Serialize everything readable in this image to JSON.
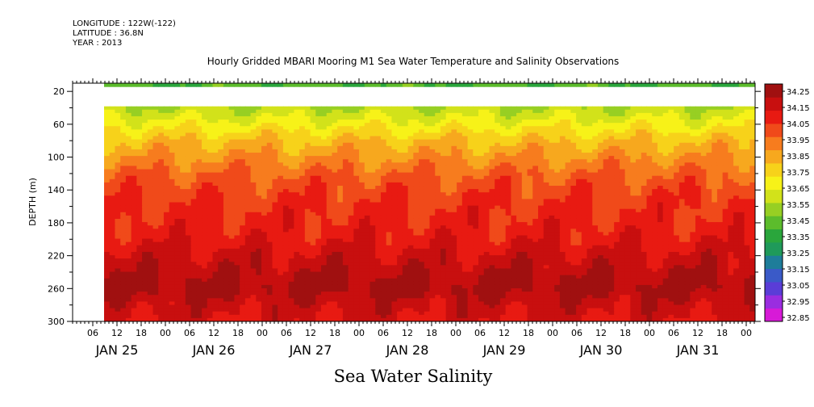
{
  "header": {
    "longitude": "LONGITUDE : 122W(-122)",
    "latitude": "LATITUDE : 36.8N",
    "year": "YEAR : 2013"
  },
  "chart_data": {
    "type": "heatmap",
    "title": "Hourly Gridded MBARI Mooring M1 Sea Water Temperature and Salinity Observations",
    "caption": "Sea Water Salinity",
    "ylabel": "DEPTH (m)",
    "ylim": [
      300,
      10
    ],
    "y_ticks": [
      20,
      60,
      100,
      140,
      180,
      220,
      260,
      300
    ],
    "x_hour_ticks": [
      "06",
      "12",
      "18",
      "00",
      "06",
      "12",
      "18",
      "00",
      "06",
      "12",
      "18",
      "00",
      "06",
      "12",
      "18",
      "00",
      "06",
      "12",
      "18",
      "00",
      "06",
      "12",
      "18",
      "00",
      "06",
      "12",
      "18",
      "00"
    ],
    "x_day_labels": [
      "JAN 25",
      "JAN 26",
      "JAN 27",
      "JAN 28",
      "JAN 29",
      "JAN 30",
      "JAN 31"
    ],
    "colorbar": {
      "levels": [
        32.85,
        32.95,
        33.05,
        33.15,
        33.25,
        33.35,
        33.45,
        33.55,
        33.65,
        33.75,
        33.85,
        33.95,
        34.05,
        34.15,
        34.25
      ],
      "labels": [
        "34.25",
        "34.15",
        "34.05",
        "33.95",
        "33.85",
        "33.75",
        "33.65",
        "33.55",
        "33.45",
        "33.35",
        "33.25",
        "33.15",
        "33.05",
        "32.95",
        "32.85"
      ],
      "colors": [
        "#d71ad7",
        "#9a2de0",
        "#5a3dd7",
        "#3a5ac8",
        "#1e7d9a",
        "#1f9a5a",
        "#2aa63c",
        "#5cbc2c",
        "#97cf23",
        "#d2e21a",
        "#f7f218",
        "#f7d21a",
        "#f7a81e",
        "#f77c1e",
        "#f04a1a",
        "#e81a12",
        "#c80f0f",
        "#a01010"
      ]
    },
    "depths": [
      10,
      20,
      40,
      60,
      80,
      100,
      120,
      140,
      160,
      180,
      200,
      220,
      240,
      260,
      280,
      300
    ],
    "salinity_by_depth": [
      33.25,
      33.35,
      33.45,
      33.6,
      33.75,
      33.85,
      33.95,
      34.02,
      34.06,
      34.08,
      34.12,
      34.18,
      34.24,
      34.28,
      34.2,
      34.15
    ],
    "no_data_depth_band": [
      20,
      40
    ]
  }
}
